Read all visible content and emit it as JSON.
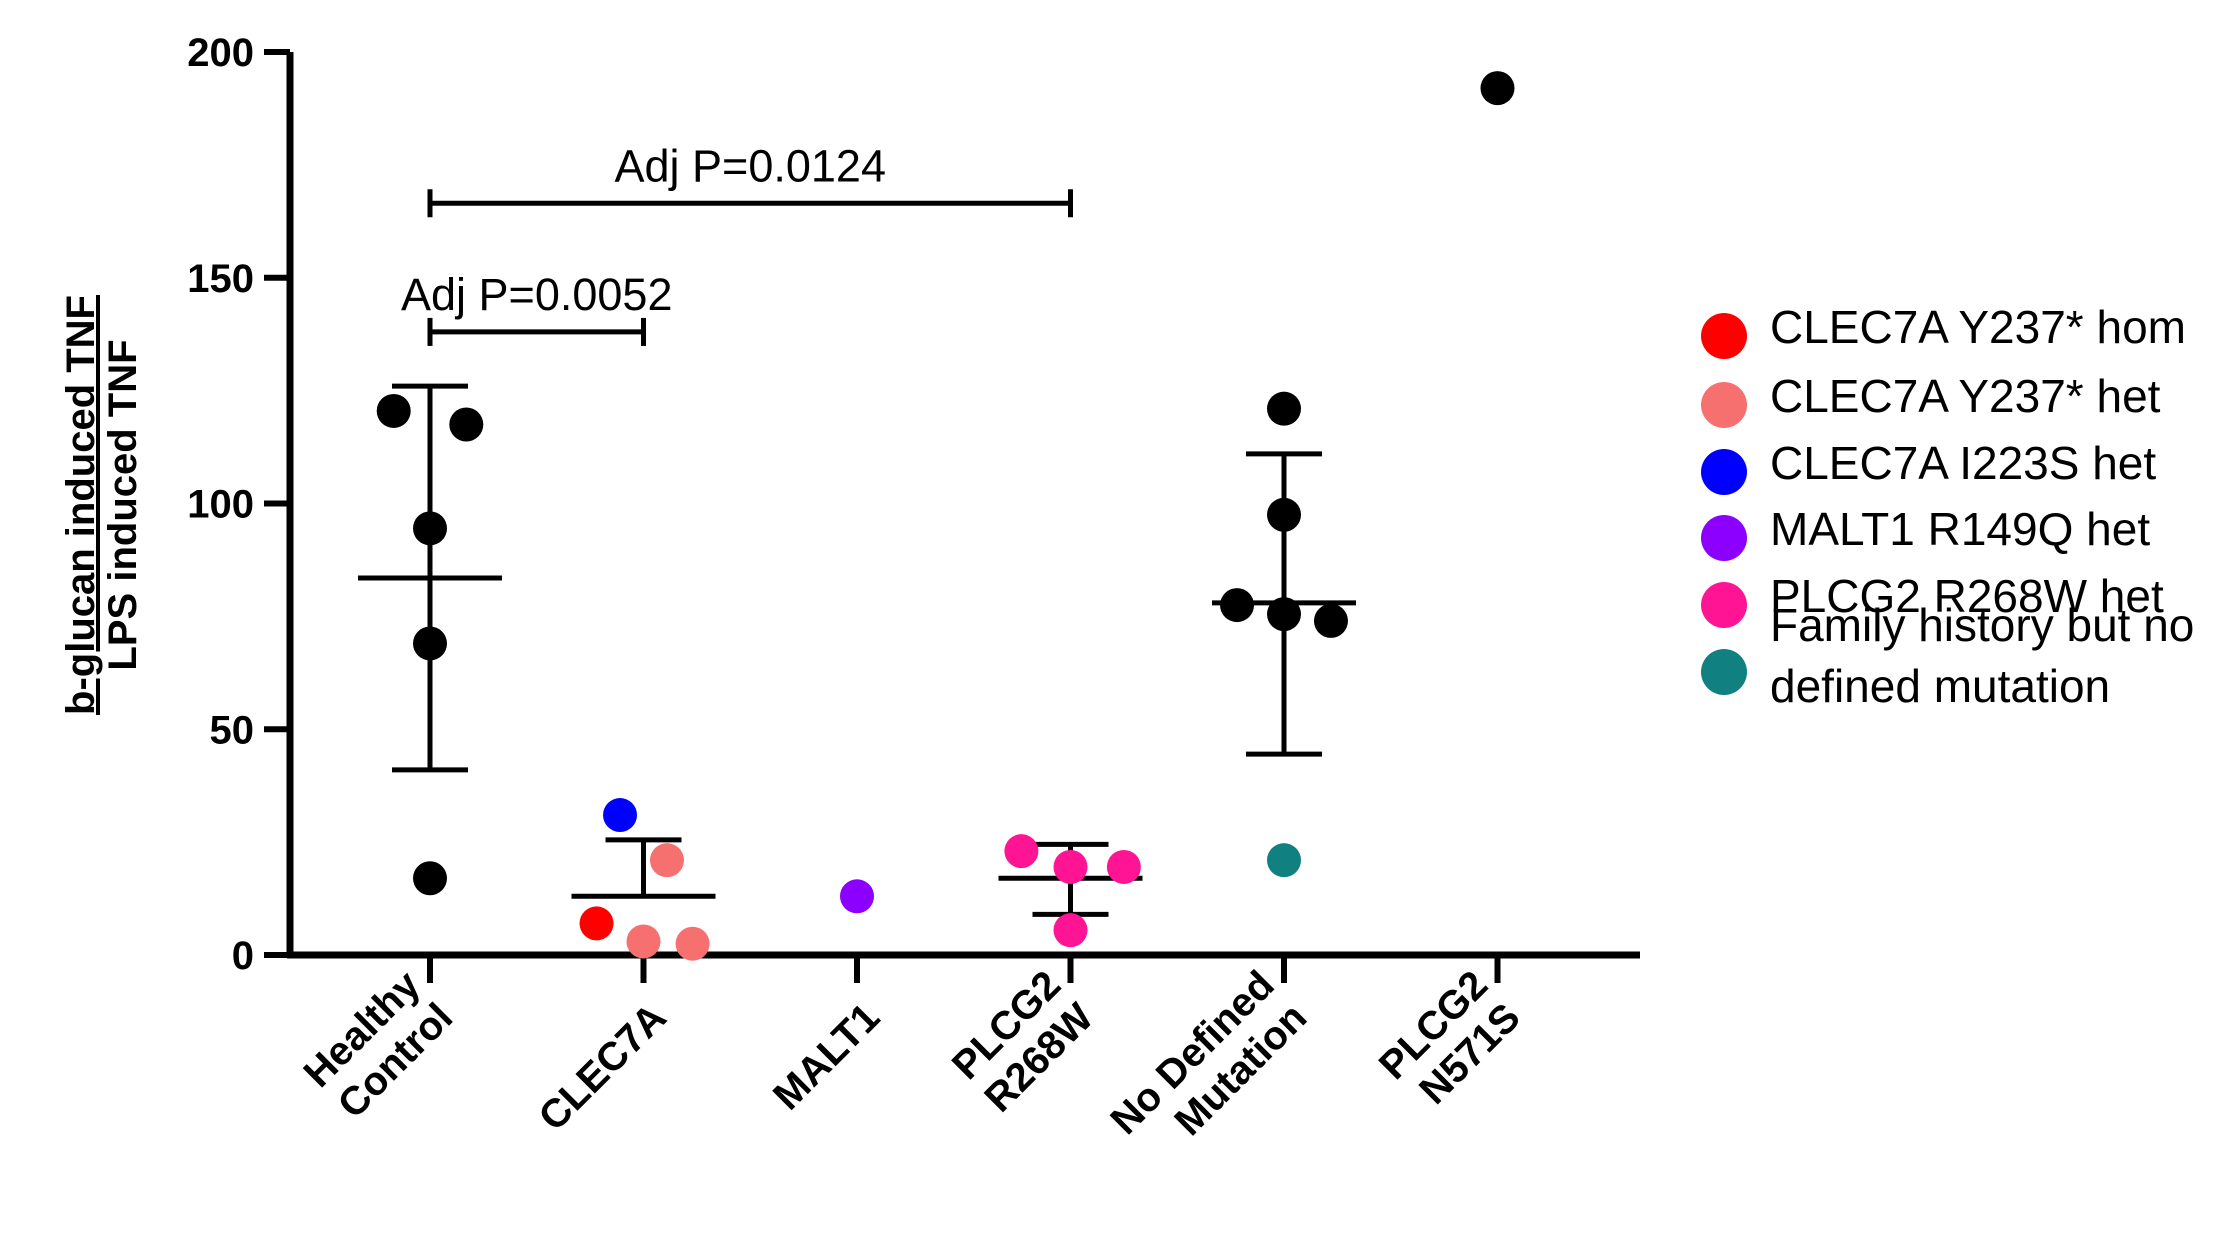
{
  "chart_data": {
    "type": "scatter",
    "ylabel_numerator": "b-glucan induced TNF",
    "ylabel_denominator": "LPS induced TNF",
    "ylim": [
      0,
      200
    ],
    "yticks": [
      "0",
      "50",
      "100",
      "150",
      "200"
    ],
    "categories": [
      [
        "Healthy",
        "Control"
      ],
      [
        "CLEC7A"
      ],
      [
        "MALT1"
      ],
      [
        "PLCG2",
        "R268W"
      ],
      [
        "No Defined",
        "Mutation"
      ],
      [
        "PLCG2",
        "N571S"
      ]
    ],
    "colors": {
      "default": "#000000",
      "clec7a_hom": "#ff0000",
      "clec7a_y237_het": "#f77070",
      "clec7a_i223s_het": "#0000ff",
      "malt1": "#8b00ff",
      "plcg2_r268w": "#ff1493",
      "family_history": "#108080"
    },
    "legend": [
      {
        "label": [
          "CLEC7A Y237* hom"
        ],
        "color": "#ff0000"
      },
      {
        "label": [
          "CLEC7A Y237* het"
        ],
        "color": "#f77070"
      },
      {
        "label": [
          "CLEC7A I223S het"
        ],
        "color": "#0000ff"
      },
      {
        "label": [
          "MALT1 R149Q het"
        ],
        "color": "#8b00ff"
      },
      {
        "label": [
          "PLCG2 R268W het"
        ],
        "color": "#ff1493"
      },
      {
        "label": [
          "Family history but no",
          "defined mutation"
        ],
        "color": "#108080"
      }
    ],
    "series": [
      {
        "category": 0,
        "mean": 83.5,
        "sd_upper": 126,
        "sd_lower": 41,
        "points": [
          {
            "dx": -0.17,
            "y": 120.5,
            "color": "#000000"
          },
          {
            "dx": 0.17,
            "y": 117.5,
            "color": "#000000"
          },
          {
            "dx": 0,
            "y": 94.5,
            "color": "#000000"
          },
          {
            "dx": 0,
            "y": 69,
            "color": "#000000"
          },
          {
            "dx": 0,
            "y": 17,
            "color": "#000000"
          }
        ]
      },
      {
        "category": 1,
        "mean": 13,
        "sd_upper": 25.5,
        "sd_lower": null,
        "points": [
          {
            "dx": -0.11,
            "y": 31,
            "color": "#0000ff"
          },
          {
            "dx": 0.11,
            "y": 21,
            "color": "#f77070"
          },
          {
            "dx": -0.22,
            "y": 7,
            "color": "#ff0000"
          },
          {
            "dx": 0,
            "y": 3,
            "color": "#f77070"
          },
          {
            "dx": 0.23,
            "y": 2.5,
            "color": "#f77070"
          }
        ]
      },
      {
        "category": 2,
        "mean": null,
        "sd_upper": null,
        "sd_lower": null,
        "points": [
          {
            "dx": 0,
            "y": 13,
            "color": "#8b00ff"
          }
        ]
      },
      {
        "category": 3,
        "mean": 17,
        "sd_upper": 24.5,
        "sd_lower": 9,
        "points": [
          {
            "dx": -0.23,
            "y": 23,
            "color": "#ff1493"
          },
          {
            "dx": 0,
            "y": 19.5,
            "color": "#ff1493"
          },
          {
            "dx": 0.25,
            "y": 19.5,
            "color": "#ff1493"
          },
          {
            "dx": 0,
            "y": 5.5,
            "color": "#ff1493"
          }
        ]
      },
      {
        "category": 4,
        "mean": 78,
        "sd_upper": 111,
        "sd_lower": 44.5,
        "points": [
          {
            "dx": 0,
            "y": 121,
            "color": "#000000"
          },
          {
            "dx": 0,
            "y": 97.5,
            "color": "#000000"
          },
          {
            "dx": -0.22,
            "y": 77.5,
            "color": "#000000"
          },
          {
            "dx": 0,
            "y": 75.5,
            "color": "#000000"
          },
          {
            "dx": 0.22,
            "y": 74,
            "color": "#000000"
          },
          {
            "dx": 0,
            "y": 21,
            "color": "#108080"
          }
        ]
      },
      {
        "category": 5,
        "mean": null,
        "sd_upper": null,
        "sd_lower": null,
        "points": [
          {
            "dx": 0,
            "y": 192,
            "color": "#000000"
          }
        ]
      }
    ],
    "annotations": [
      {
        "text": "Adj P=0.0124",
        "from": 0,
        "to": 3,
        "y": 166.5
      },
      {
        "text": "Adj P=0.0052",
        "from": 0,
        "to": 1,
        "y": 138
      }
    ]
  }
}
